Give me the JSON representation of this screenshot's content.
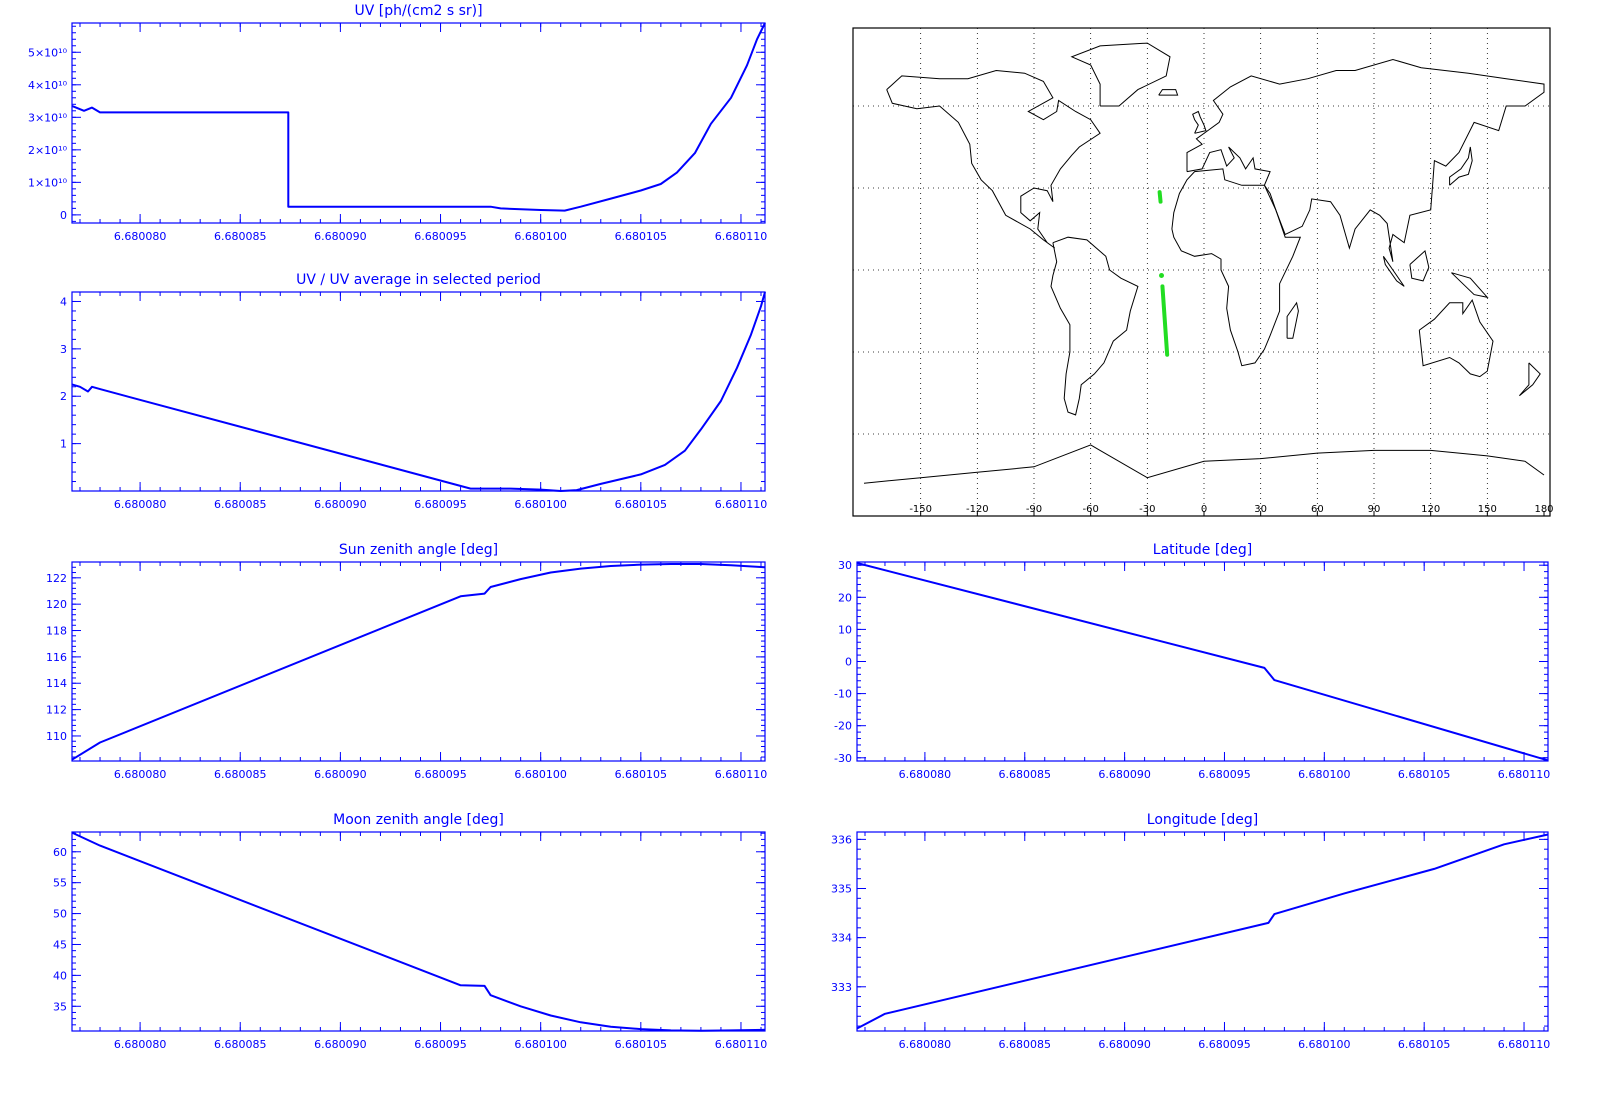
{
  "colors": {
    "plot": "#0000ff",
    "map_track": "#22dd22",
    "map_coast": "#000000",
    "background": "#ffffff"
  },
  "x_tick_labels": [
    "6.680080",
    "6.680085",
    "6.680090",
    "6.680095",
    "6.680100",
    "6.680105",
    "6.680110"
  ],
  "map": {
    "lon_tick_labels": [
      "-150",
      "-120",
      "-90",
      "-60",
      "-30",
      "0",
      "30",
      "60",
      "90",
      "120",
      "150",
      "180"
    ],
    "grid": "dotted",
    "track": [
      {
        "lon": -23.5,
        "lat": 28.5
      },
      {
        "lon": -23.0,
        "lat": 25.0
      },
      {
        "lon": -22.5,
        "lat": -2.0
      },
      {
        "lon": -22.0,
        "lat": -6.0
      },
      {
        "lon": -19.5,
        "lat": -31.0
      }
    ]
  },
  "chart_data": [
    {
      "type": "line",
      "title": "UV [ph/(cm2 s sr)]",
      "y_tick_labels": [
        "0",
        "1×10¹⁰",
        "2×10¹⁰",
        "3×10¹⁰",
        "4×10¹⁰",
        "5×10¹⁰"
      ],
      "y_ticks": [
        0,
        10000000000.0,
        20000000000.0,
        30000000000.0,
        40000000000.0,
        50000000000.0
      ],
      "ylim": [
        -2500000000.0,
        59000000000.0
      ],
      "xlim": [
        6.6800766,
        6.6801112
      ],
      "x": [
        6.6800766,
        6.6800772,
        6.6800776,
        6.680078,
        6.6800782,
        6.6800874,
        6.6800874,
        6.6800975,
        6.680098,
        6.6801,
        6.6801012,
        6.680102,
        6.6801035,
        6.680105,
        6.680106,
        6.6801068,
        6.6801077,
        6.6801085,
        6.6801095,
        6.6801103,
        6.6801108,
        6.6801112
      ],
      "y": [
        33500000000.0,
        32000000000.0,
        33000000000.0,
        31500000000.0,
        31500000000.0,
        31500000000.0,
        2500000000.0,
        2500000000.0,
        2000000000.0,
        1500000000.0,
        1300000000.0,
        2500000000.0,
        5000000000.0,
        7500000000.0,
        9500000000.0,
        13000000000.0,
        19000000000.0,
        28000000000.0,
        36000000000.0,
        46000000000.0,
        54000000000.0,
        59000000000.0
      ]
    },
    {
      "type": "line",
      "title": "UV / UV average in selected period",
      "y_tick_labels": [
        "1",
        "2",
        "3",
        "4"
      ],
      "y_ticks": [
        1,
        2,
        3,
        4
      ],
      "ylim": [
        0,
        4.2
      ],
      "xlim": [
        6.6800766,
        6.6801112
      ],
      "x": [
        6.6800766,
        6.680077,
        6.6800774,
        6.6800776,
        6.680078,
        6.6800965,
        6.6800985,
        6.6801,
        6.680101,
        6.6801018,
        6.680103,
        6.680105,
        6.6801062,
        6.6801072,
        6.680108,
        6.680109,
        6.6801098,
        6.6801105,
        6.680111,
        6.6801112
      ],
      "y": [
        2.25,
        2.2,
        2.1,
        2.2,
        2.15,
        0.05,
        0.05,
        0.03,
        0.0,
        0.02,
        0.15,
        0.35,
        0.55,
        0.85,
        1.3,
        1.9,
        2.6,
        3.3,
        3.9,
        4.2
      ]
    },
    {
      "type": "line",
      "title": "Sun zenith angle [deg]",
      "y_tick_labels": [
        "110",
        "112",
        "114",
        "116",
        "118",
        "120",
        "122"
      ],
      "y_ticks": [
        110,
        112,
        114,
        116,
        118,
        120,
        122
      ],
      "ylim": [
        108.1,
        123.2
      ],
      "xlim": [
        6.6800766,
        6.6801112
      ],
      "x": [
        6.6800766,
        6.680078,
        6.680096,
        6.6800972,
        6.6800975,
        6.680099,
        6.6801005,
        6.680102,
        6.6801035,
        6.680105,
        6.6801065,
        6.680108,
        6.6801095,
        6.6801112
      ],
      "y": [
        108.2,
        109.5,
        120.6,
        120.8,
        121.3,
        121.9,
        122.4,
        122.7,
        122.9,
        123.0,
        123.05,
        123.05,
        122.95,
        122.8
      ]
    },
    {
      "type": "line",
      "title": "Moon zenith angle [deg]",
      "y_tick_labels": [
        "35",
        "40",
        "45",
        "50",
        "55",
        "60"
      ],
      "y_ticks": [
        35,
        40,
        45,
        50,
        55,
        60
      ],
      "ylim": [
        31.0,
        63.2
      ],
      "xlim": [
        6.6800766,
        6.6801112
      ],
      "x": [
        6.6800766,
        6.680078,
        6.680096,
        6.6800972,
        6.6800975,
        6.680099,
        6.6801005,
        6.680102,
        6.6801035,
        6.680105,
        6.6801065,
        6.680108,
        6.6801095,
        6.6801112
      ],
      "y": [
        63.1,
        61.0,
        38.4,
        38.3,
        36.8,
        35.0,
        33.5,
        32.4,
        31.7,
        31.3,
        31.1,
        31.05,
        31.1,
        31.2
      ]
    },
    {
      "type": "line",
      "title": "Latitude [deg]",
      "y_tick_labels": [
        "-30",
        "-20",
        "-10",
        "0",
        "10",
        "20",
        "30"
      ],
      "y_ticks": [
        -30,
        -20,
        -10,
        0,
        10,
        20,
        30
      ],
      "ylim": [
        -31.0,
        31.0
      ],
      "xlim": [
        6.6800766,
        6.6801112
      ],
      "x": [
        6.6800766,
        6.680097,
        6.6800975,
        6.6801112
      ],
      "y": [
        30.7,
        -2.0,
        -5.8,
        -30.8
      ]
    },
    {
      "type": "line",
      "title": "Longitude [deg]",
      "y_tick_labels": [
        "333",
        "334",
        "335",
        "336"
      ],
      "y_ticks": [
        333,
        334,
        335,
        336
      ],
      "ylim": [
        332.1,
        336.15
      ],
      "xlim": [
        6.6800766,
        6.6801112
      ],
      "x": [
        6.6800766,
        6.680078,
        6.6800972,
        6.6800975,
        6.680101,
        6.6801055,
        6.680109,
        6.6801112
      ],
      "y": [
        332.15,
        332.45,
        334.3,
        334.48,
        334.9,
        335.4,
        335.9,
        336.1
      ]
    }
  ]
}
